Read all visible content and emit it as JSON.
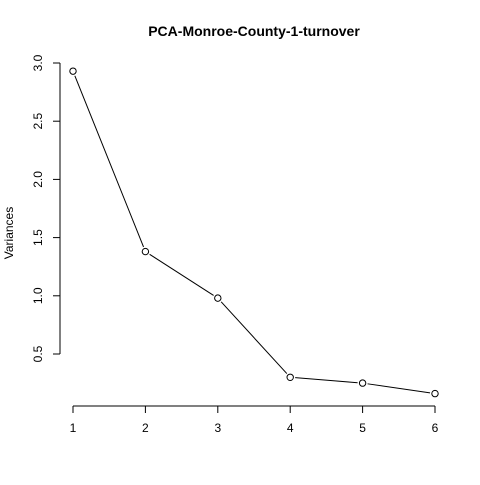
{
  "chart_data": {
    "type": "line",
    "title": "PCA-Monroe-County-1-turnover",
    "xlabel": "",
    "ylabel": "Variances",
    "x": [
      1,
      2,
      3,
      4,
      5,
      6
    ],
    "values": [
      2.93,
      1.38,
      0.98,
      0.3,
      0.25,
      0.16
    ],
    "xlim": [
      1,
      6
    ],
    "ylim": [
      0.5,
      3.0
    ],
    "xticks": [
      "1",
      "2",
      "3",
      "4",
      "5",
      "6"
    ],
    "yticks": [
      "0.5",
      "1.0",
      "1.5",
      "2.0",
      "2.5",
      "3.0"
    ],
    "marker": "open-circle",
    "grid": false,
    "line_color": "#000000"
  }
}
